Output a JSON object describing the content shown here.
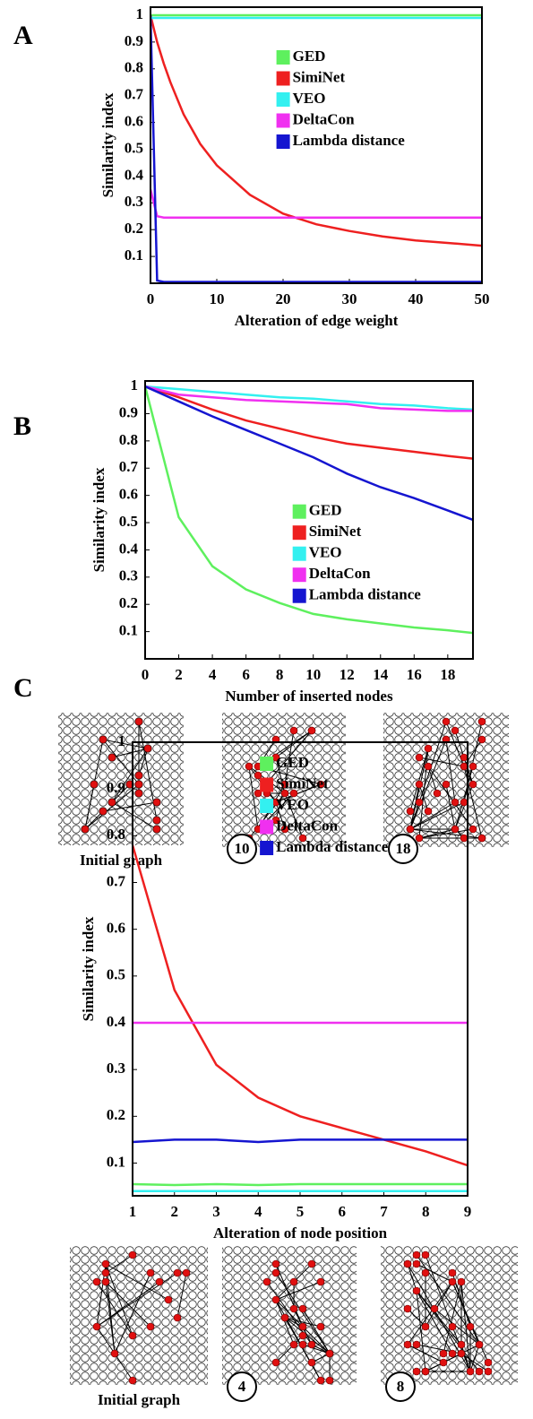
{
  "chart_data": [
    {
      "type": "line",
      "panel": "A",
      "xlabel": "Alteration of edge weight",
      "ylabel": "Similarity index",
      "x": [
        0,
        1,
        2,
        3,
        4,
        5,
        7.5,
        10,
        15,
        20,
        25,
        30,
        35,
        40,
        45,
        50
      ],
      "xlim": [
        0,
        50
      ],
      "xticks": [
        0,
        10,
        20,
        30,
        40,
        50
      ],
      "ylim": [
        0,
        1.03
      ],
      "yticks": [
        0.1,
        0.2,
        0.3,
        0.4,
        0.5,
        0.6,
        0.7,
        0.8,
        0.9,
        1
      ],
      "grid": false,
      "legend": "upper center",
      "series": [
        {
          "name": "GED",
          "color": "#5ef05e",
          "values": [
            1,
            1,
            1,
            1,
            1,
            1,
            1,
            1,
            1,
            1,
            1,
            1,
            1,
            1,
            1,
            1
          ]
        },
        {
          "name": "SimiNet",
          "color": "#ee2020",
          "values": [
            1,
            0.9,
            0.82,
            0.75,
            0.69,
            0.63,
            0.52,
            0.44,
            0.33,
            0.26,
            0.22,
            0.195,
            0.175,
            0.16,
            0.15,
            0.14
          ]
        },
        {
          "name": "VEO",
          "color": "#33f0f0",
          "values": [
            0.99,
            0.99,
            0.99,
            0.99,
            0.99,
            0.99,
            0.99,
            0.99,
            0.99,
            0.99,
            0.99,
            0.99,
            0.99,
            0.99,
            0.99,
            0.99
          ]
        },
        {
          "name": "DeltaCon",
          "color": "#f030f0",
          "values": [
            0.35,
            0.25,
            0.245,
            0.245,
            0.245,
            0.245,
            0.245,
            0.245,
            0.245,
            0.245,
            0.245,
            0.245,
            0.245,
            0.245,
            0.245,
            0.245
          ]
        },
        {
          "name": "Lambda distance",
          "color": "#1515d0",
          "values": [
            1,
            0.01,
            0.005,
            0.005,
            0.005,
            0.005,
            0.005,
            0.005,
            0.005,
            0.005,
            0.005,
            0.005,
            0.005,
            0.005,
            0.005,
            0.005
          ]
        }
      ]
    },
    {
      "type": "line",
      "panel": "B",
      "xlabel": "Number of inserted nodes",
      "ylabel": "Similarity index",
      "x": [
        0,
        2,
        4,
        6,
        8,
        10,
        12,
        14,
        16,
        18,
        19.5
      ],
      "xlim": [
        0,
        19.5
      ],
      "xticks": [
        0,
        2,
        4,
        6,
        8,
        10,
        12,
        14,
        16,
        18
      ],
      "ylim": [
        0,
        1.02
      ],
      "yticks": [
        0.1,
        0.2,
        0.3,
        0.4,
        0.5,
        0.6,
        0.7,
        0.8,
        0.9,
        1
      ],
      "grid": false,
      "legend": "center right",
      "series": [
        {
          "name": "GED",
          "color": "#5ef05e",
          "values": [
            1,
            0.52,
            0.34,
            0.255,
            0.205,
            0.165,
            0.145,
            0.13,
            0.115,
            0.105,
            0.095
          ]
        },
        {
          "name": "SimiNet",
          "color": "#ee2020",
          "values": [
            1,
            0.96,
            0.915,
            0.875,
            0.845,
            0.815,
            0.79,
            0.775,
            0.76,
            0.745,
            0.735
          ]
        },
        {
          "name": "VEO",
          "color": "#33f0f0",
          "values": [
            1,
            0.99,
            0.98,
            0.97,
            0.96,
            0.955,
            0.945,
            0.935,
            0.93,
            0.92,
            0.915
          ]
        },
        {
          "name": "DeltaCon",
          "color": "#f030f0",
          "values": [
            1,
            0.97,
            0.96,
            0.95,
            0.945,
            0.94,
            0.935,
            0.92,
            0.915,
            0.91,
            0.91
          ]
        },
        {
          "name": "Lambda distance",
          "color": "#1515d0",
          "values": [
            1,
            0.945,
            0.89,
            0.84,
            0.79,
            0.74,
            0.68,
            0.63,
            0.59,
            0.545,
            0.51
          ]
        }
      ],
      "insets": [
        {
          "label": "Initial graph"
        },
        {
          "label": "10"
        },
        {
          "label": "18"
        }
      ]
    },
    {
      "type": "line",
      "panel": "C",
      "xlabel": "Alteration of node position",
      "ylabel": "Similarity index",
      "x": [
        1,
        2,
        3,
        4,
        5,
        6,
        7,
        8,
        9
      ],
      "xlim": [
        1,
        9
      ],
      "xticks": [
        1,
        2,
        3,
        4,
        5,
        6,
        7,
        8,
        9
      ],
      "ylim": [
        0.03,
        1
      ],
      "yticks": [
        0.1,
        0.2,
        0.3,
        0.4,
        0.5,
        0.6,
        0.7,
        0.8,
        0.9,
        1
      ],
      "grid": false,
      "legend": "upper center",
      "series": [
        {
          "name": "GED",
          "color": "#5ef05e",
          "values": [
            0.055,
            0.053,
            0.055,
            0.053,
            0.055,
            0.055,
            0.055,
            0.055,
            0.055
          ]
        },
        {
          "name": "SimiNet",
          "color": "#ee2020",
          "values": [
            0.78,
            0.47,
            0.31,
            0.24,
            0.2,
            0.175,
            0.15,
            0.125,
            0.095
          ]
        },
        {
          "name": "VEO",
          "color": "#33f0f0",
          "values": [
            0.04,
            0.04,
            0.04,
            0.04,
            0.04,
            0.04,
            0.04,
            0.04,
            0.04
          ]
        },
        {
          "name": "DeltaCon",
          "color": "#f030f0",
          "values": [
            0.4,
            0.4,
            0.4,
            0.4,
            0.4,
            0.4,
            0.4,
            0.4,
            0.4
          ]
        },
        {
          "name": "Lambda distance",
          "color": "#1515d0",
          "values": [
            0.145,
            0.15,
            0.15,
            0.145,
            0.15,
            0.15,
            0.15,
            0.15,
            0.15
          ]
        }
      ],
      "insets": [
        {
          "label": "Initial graph"
        },
        {
          "label": "4"
        },
        {
          "label": "8"
        }
      ]
    }
  ]
}
